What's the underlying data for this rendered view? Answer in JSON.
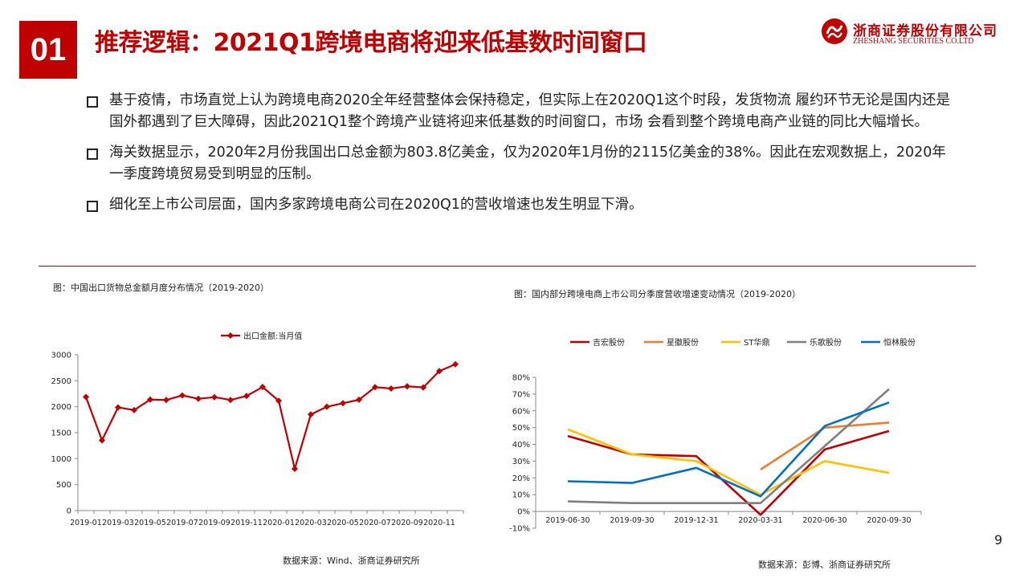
{
  "header": {
    "section_number": "01",
    "title": "推荐逻辑：2021Q1跨境电商将迎来低基数时间窗口"
  },
  "logo": {
    "cn": "浙商证券股份有限公司",
    "en": "ZHESHANG SECURITIES CO.LTD"
  },
  "bullets": [
    "基于疫情，市场直觉上认为跨境电商2020全年经营整体会保持稳定，但实际上在2020Q1这个时段，发货物流 履约环节无论是国内还是国外都遇到了巨大障碍，因此2021Q1整个跨境产业链将迎来低基数的时间窗口，市场 会看到整个跨境电商产业链的同比大幅增长。",
    "海关数据显示，2020年2月份我国出口总金额为803.8亿美金，仅为2020年1月份的2115亿美金的38%。因此在宏观数据上，2020年一季度跨境贸易受到明显的压制。",
    "细化至上市公司层面，国内多家跨境电商公司在2020Q1的营收增速也发生明显下滑。"
  ],
  "left_chart": {
    "caption": "图：中国出口货物总金额月度分布情况（2019-2020）",
    "source": "数据来源：Wind、浙商证券研究所"
  },
  "right_chart": {
    "caption": "图：国内部分跨境电商上市公司分季度营收增速变动情况（2019-2020）",
    "source": "数据来源：彭博、浙商证券研究所"
  },
  "page_number": "9",
  "chart_data": [
    {
      "type": "line",
      "title": "",
      "series": [
        {
          "name": "出口金额:当月值",
          "color": "#c00000",
          "values": [
            2188,
            1353,
            1988,
            1935,
            2138,
            2130,
            2218,
            2153,
            2185,
            2130,
            2208,
            2381,
            2115,
            804,
            1852,
            2000,
            2068,
            2135,
            2377,
            2351,
            2394,
            2372,
            2687,
            2819
          ]
        }
      ],
      "categories": [
        "2019-01",
        "2019-02",
        "2019-03",
        "2019-04",
        "2019-05",
        "2019-06",
        "2019-07",
        "2019-08",
        "2019-09",
        "2019-10",
        "2019-11",
        "2019-12",
        "2020-01",
        "2020-02",
        "2020-03",
        "2020-04",
        "2020-05",
        "2020-06",
        "2020-07",
        "2020-08",
        "2020-09",
        "2020-10",
        "2020-11",
        "2020-12"
      ],
      "tick_labels": [
        "2019-01",
        "2019-03",
        "2019-05",
        "2019-07",
        "2019-09",
        "2019-11",
        "2020-01",
        "2020-03",
        "2020-05",
        "2020-07",
        "2020-09",
        "2020-11"
      ],
      "y_ticks": [
        "0",
        "500",
        "1000",
        "1500",
        "2000",
        "2500",
        "3000"
      ],
      "ylim": [
        0,
        3000
      ],
      "legend": "top-center",
      "grid": false
    },
    {
      "type": "line",
      "title": "",
      "categories": [
        "2019-06-30",
        "2019-09-30",
        "2019-12-31",
        "2020-03-31",
        "2020-06-30",
        "2020-09-30"
      ],
      "y_ticks": [
        "-10%",
        "0%",
        "10%",
        "20%",
        "30%",
        "40%",
        "50%",
        "60%",
        "70%",
        "80%"
      ],
      "ylim": [
        -10,
        80
      ],
      "legend": "top",
      "grid": false,
      "series": [
        {
          "name": "吉宏股份",
          "color": "#c00000",
          "values": [
            45,
            34,
            33,
            -2,
            37,
            48
          ]
        },
        {
          "name": "星徽股份",
          "color": "#ed7d31",
          "values": [
            null,
            null,
            null,
            25,
            50,
            53
          ]
        },
        {
          "name": "ST华鼎",
          "color": "#ffc000",
          "values": [
            49,
            34,
            30,
            10,
            30,
            23
          ]
        },
        {
          "name": "乐歌股份",
          "color": "#7f7f7f",
          "values": [
            6,
            5,
            5,
            5,
            39,
            73
          ]
        },
        {
          "name": "恒林股份",
          "color": "#0070c0",
          "values": [
            18,
            17,
            26,
            9,
            51,
            65
          ]
        }
      ]
    }
  ]
}
